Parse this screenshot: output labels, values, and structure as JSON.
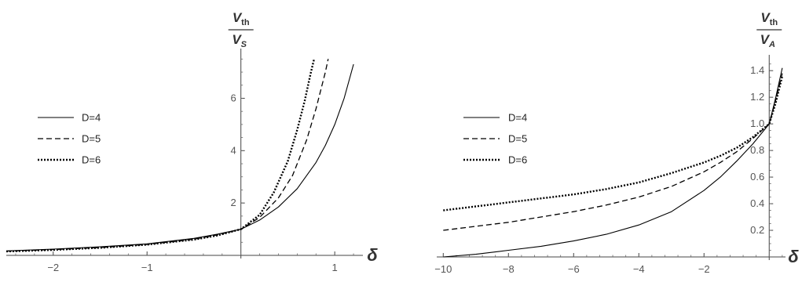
{
  "chart_data": [
    {
      "type": "line",
      "title": "",
      "xlabel": "δ",
      "ylabel": {
        "numerator": "V",
        "numerator_sub": "th",
        "denominator": "V",
        "denominator_sub": "S"
      },
      "xlim": [
        -2.5,
        1.3
      ],
      "ylim": [
        0,
        7.6
      ],
      "xticks": [
        -2,
        -1,
        1
      ],
      "yticks": [
        2,
        4,
        6
      ],
      "grid": false,
      "legend_position": "left-middle",
      "series": [
        {
          "name": "D=4",
          "style": "solid",
          "x": [
            -2.5,
            -2.0,
            -1.5,
            -1.0,
            -0.5,
            -0.25,
            0,
            0.2,
            0.4,
            0.6,
            0.8,
            0.9,
            1.0,
            1.1,
            1.2
          ],
          "y": [
            0.17,
            0.24,
            0.33,
            0.44,
            0.65,
            0.81,
            1.0,
            1.35,
            1.85,
            2.55,
            3.55,
            4.2,
            5.0,
            6.0,
            7.3
          ]
        },
        {
          "name": "D=5",
          "style": "dashed",
          "x": [
            -2.5,
            -2.0,
            -1.5,
            -1.0,
            -0.5,
            -0.25,
            0,
            0.2,
            0.4,
            0.55,
            0.7,
            0.8,
            0.9,
            0.93
          ],
          "y": [
            0.16,
            0.22,
            0.3,
            0.42,
            0.62,
            0.78,
            1.0,
            1.45,
            2.2,
            3.05,
            4.4,
            5.6,
            7.0,
            7.5
          ]
        },
        {
          "name": "D=6",
          "style": "dotted",
          "x": [
            -2.5,
            -2.0,
            -1.5,
            -1.0,
            -0.5,
            -0.25,
            0,
            0.2,
            0.35,
            0.5,
            0.6,
            0.68,
            0.74,
            0.78
          ],
          "y": [
            0.15,
            0.21,
            0.29,
            0.41,
            0.6,
            0.76,
            1.0,
            1.55,
            2.4,
            3.6,
            4.8,
            5.9,
            6.9,
            7.5
          ]
        }
      ]
    },
    {
      "type": "line",
      "title": "",
      "xlabel": "δ",
      "ylabel": {
        "numerator": "V",
        "numerator_sub": "th",
        "denominator": "V",
        "denominator_sub": "A"
      },
      "xlim": [
        -10.2,
        0.5
      ],
      "ylim": [
        0,
        1.46
      ],
      "xticks": [
        -10,
        -8,
        -6,
        -4,
        -2
      ],
      "yticks": [
        0.2,
        0.4,
        0.6,
        0.8,
        1.0,
        1.2,
        1.4
      ],
      "grid": false,
      "legend_position": "left-middle",
      "series": [
        {
          "name": "D=4",
          "style": "solid",
          "x": [
            -10,
            -9,
            -8,
            -7,
            -6,
            -5,
            -4,
            -3,
            -2,
            -1.5,
            -1,
            -0.5,
            0,
            0.2,
            0.4
          ],
          "y": [
            0.0,
            0.02,
            0.05,
            0.08,
            0.12,
            0.17,
            0.24,
            0.34,
            0.5,
            0.6,
            0.72,
            0.85,
            1.0,
            1.2,
            1.42
          ]
        },
        {
          "name": "D=5",
          "style": "dashed",
          "x": [
            -10,
            -9,
            -8,
            -7,
            -6,
            -5,
            -4,
            -3,
            -2,
            -1.5,
            -1,
            -0.5,
            0,
            0.2,
            0.4
          ],
          "y": [
            0.2,
            0.23,
            0.26,
            0.3,
            0.34,
            0.39,
            0.45,
            0.53,
            0.64,
            0.71,
            0.79,
            0.89,
            1.0,
            1.18,
            1.38
          ]
        },
        {
          "name": "D=6",
          "style": "dotted",
          "x": [
            -10,
            -9,
            -8,
            -7,
            -6,
            -5,
            -4,
            -3,
            -2,
            -1.5,
            -1,
            -0.5,
            0,
            0.2,
            0.4
          ],
          "y": [
            0.35,
            0.38,
            0.41,
            0.44,
            0.47,
            0.51,
            0.56,
            0.63,
            0.71,
            0.76,
            0.82,
            0.9,
            1.0,
            1.16,
            1.36
          ]
        }
      ]
    }
  ]
}
